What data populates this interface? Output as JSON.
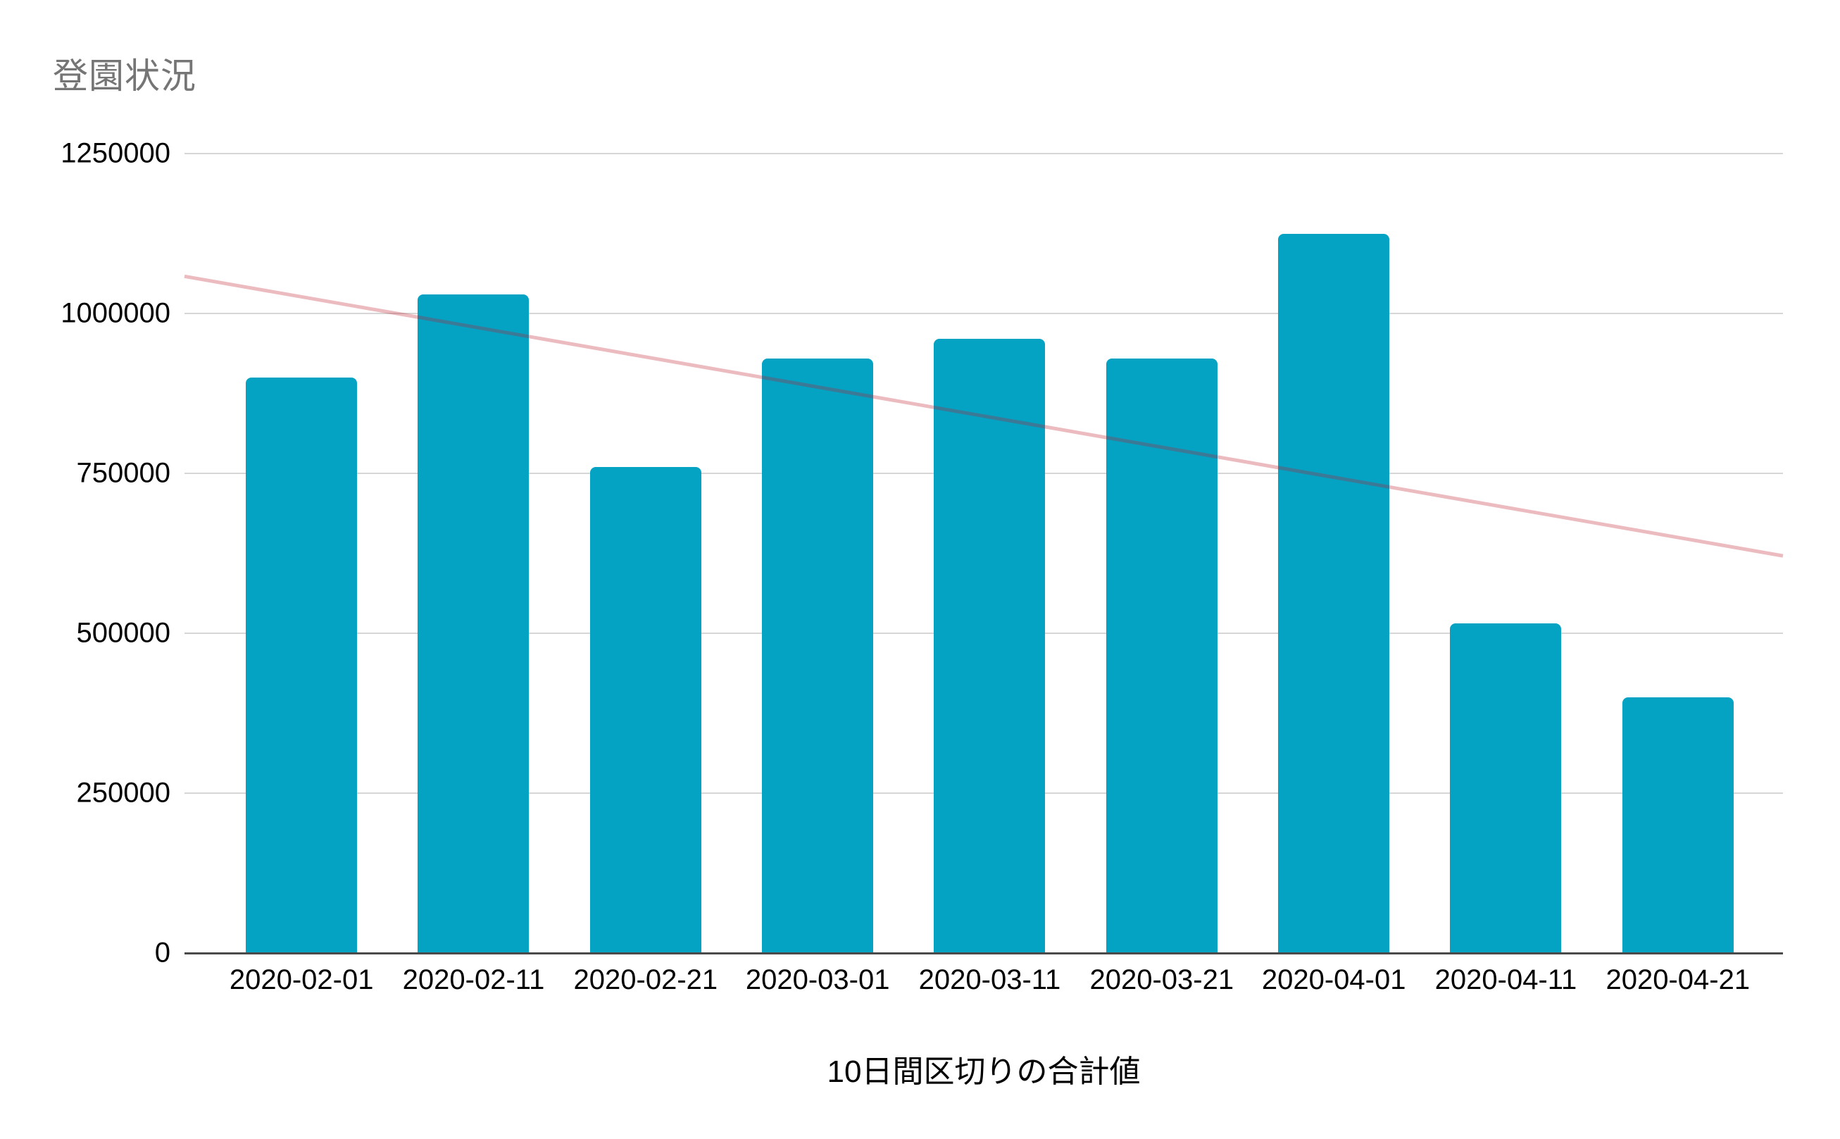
{
  "title": "登園状況",
  "title_color": "#757575",
  "chart_data": {
    "type": "bar",
    "title": "登園状況",
    "xlabel": "10日間区切りの合計値",
    "ylabel": "",
    "categories": [
      "2020-02-01",
      "2020-02-11",
      "2020-02-21",
      "2020-03-01",
      "2020-03-11",
      "2020-03-21",
      "2020-04-01",
      "2020-04-11",
      "2020-04-21"
    ],
    "values": [
      900000,
      1030000,
      760000,
      930000,
      960000,
      930000,
      1125000,
      515000,
      400000
    ],
    "ylim": [
      0,
      1250000
    ],
    "yticks": [
      0,
      250000,
      500000,
      750000,
      1000000,
      1250000
    ],
    "grid": "horizontal",
    "legend": "none",
    "bar_color": "#04a3c4",
    "gridline_color": "#d6d6d6",
    "axisline_color": "#4a4a4a",
    "trendline": {
      "type": "linear",
      "color": "#be1e2d",
      "opacity": 0.3,
      "start_value": 1058000,
      "end_value": 621000
    }
  }
}
